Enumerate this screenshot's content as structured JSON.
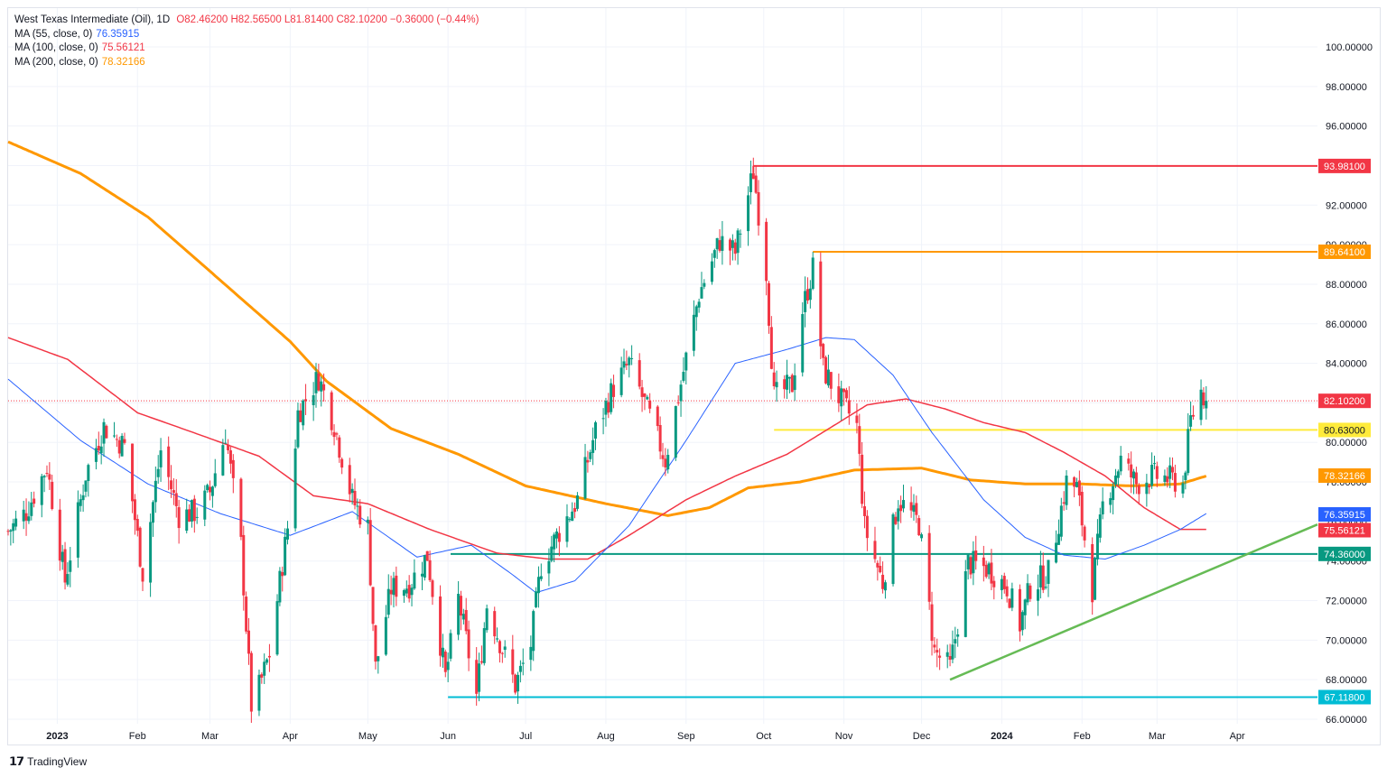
{
  "header": {
    "symbol": "West Texas Intermediate (Oil), 1D",
    "ohlc": "O82.46200 H82.56500 L81.81400 C82.10200 −0.36000 (−0.44%)",
    "ma55_label": "MA (55, close, 0)",
    "ma55_value": "76.35915",
    "ma100_label": "MA (100, close, 0)",
    "ma100_value": "75.56121",
    "ma200_label": "MA (200, close, 0)",
    "ma200_value": "78.32166"
  },
  "footer": {
    "brand": "TradingView"
  },
  "colors": {
    "up": "#089981",
    "down": "#f23645",
    "ma55": "#2962ff",
    "ma100": "#f23645",
    "ma200": "#ff9800"
  },
  "chart_data": {
    "type": "candlestick",
    "title": "West Texas Intermediate (Oil), 1D",
    "ylim": [
      65.7,
      101.6
    ],
    "y_ticks": [
      "100.00000",
      "98.00000",
      "96.00000",
      "94.00000",
      "92.00000",
      "90.00000",
      "88.00000",
      "86.00000",
      "84.00000",
      "82.00000",
      "80.00000",
      "78.00000",
      "76.00000",
      "74.00000",
      "72.00000",
      "70.00000",
      "68.00000",
      "66.00000"
    ],
    "x_ticks": [
      {
        "label": "2023",
        "d": "2023-01-01",
        "bold": true
      },
      {
        "label": "Feb",
        "d": "2023-02-01"
      },
      {
        "label": "Mar",
        "d": "2023-03-01"
      },
      {
        "label": "Apr",
        "d": "2023-04-01"
      },
      {
        "label": "May",
        "d": "2023-05-01"
      },
      {
        "label": "Jun",
        "d": "2023-06-01"
      },
      {
        "label": "Jul",
        "d": "2023-07-01"
      },
      {
        "label": "Aug",
        "d": "2023-08-01"
      },
      {
        "label": "Sep",
        "d": "2023-09-01"
      },
      {
        "label": "Oct",
        "d": "2023-10-01"
      },
      {
        "label": "Nov",
        "d": "2023-11-01"
      },
      {
        "label": "Dec",
        "d": "2023-12-01"
      },
      {
        "label": "2024",
        "d": "2024-01-01",
        "bold": true
      },
      {
        "label": "Feb",
        "d": "2024-02-01"
      },
      {
        "label": "Mar",
        "d": "2024-03-01"
      },
      {
        "label": "Apr",
        "d": "2024-04-01"
      }
    ],
    "x_range": [
      "2022-12-13",
      "2024-05-02"
    ],
    "last_price": 82.102,
    "price_anchors": [
      [
        "2022-12-13",
        75.5
      ],
      [
        "2022-12-20",
        76.5
      ],
      [
        "2022-12-28",
        78.8
      ],
      [
        "2023-01-04",
        73.0
      ],
      [
        "2023-01-12",
        78.4
      ],
      [
        "2023-01-19",
        80.8
      ],
      [
        "2023-01-27",
        79.8
      ],
      [
        "2023-02-03",
        73.4
      ],
      [
        "2023-02-10",
        79.6
      ],
      [
        "2023-02-17",
        76.3
      ],
      [
        "2023-02-24",
        76.5
      ],
      [
        "2023-03-01",
        77.5
      ],
      [
        "2023-03-07",
        80.5
      ],
      [
        "2023-03-13",
        74.8
      ],
      [
        "2023-03-17",
        66.7
      ],
      [
        "2023-03-20",
        67.6
      ],
      [
        "2023-03-24",
        69.3
      ],
      [
        "2023-03-31",
        75.7
      ],
      [
        "2023-04-04",
        81.5
      ],
      [
        "2023-04-12",
        83.3
      ],
      [
        "2023-04-18",
        80.9
      ],
      [
        "2023-04-25",
        77.1
      ],
      [
        "2023-05-01",
        75.7
      ],
      [
        "2023-05-04",
        68.6
      ],
      [
        "2023-05-10",
        72.6
      ],
      [
        "2023-05-17",
        72.8
      ],
      [
        "2023-05-24",
        74.3
      ],
      [
        "2023-05-31",
        68.1
      ],
      [
        "2023-06-05",
        72.1
      ],
      [
        "2023-06-12",
        67.2
      ],
      [
        "2023-06-16",
        71.8
      ],
      [
        "2023-06-23",
        69.2
      ],
      [
        "2023-06-27",
        67.7
      ],
      [
        "2023-07-03",
        69.8
      ],
      [
        "2023-07-07",
        73.8
      ],
      [
        "2023-07-14",
        75.5
      ],
      [
        "2023-07-21",
        77.1
      ],
      [
        "2023-07-28",
        80.6
      ],
      [
        "2023-08-04",
        82.8
      ],
      [
        "2023-08-10",
        84.0
      ],
      [
        "2023-08-18",
        81.3
      ],
      [
        "2023-08-24",
        79.1
      ],
      [
        "2023-08-31",
        83.6
      ],
      [
        "2023-09-06",
        87.5
      ],
      [
        "2023-09-14",
        90.2
      ],
      [
        "2023-09-20",
        89.6
      ],
      [
        "2023-09-27",
        93.7
      ],
      [
        "2023-10-02",
        88.6
      ],
      [
        "2023-10-05",
        82.3
      ],
      [
        "2023-10-12",
        82.9
      ],
      [
        "2023-10-16",
        86.7
      ],
      [
        "2023-10-20",
        88.8
      ],
      [
        "2023-10-24",
        83.7
      ],
      [
        "2023-10-30",
        82.3
      ],
      [
        "2023-11-06",
        80.8
      ],
      [
        "2023-11-09",
        75.7
      ],
      [
        "2023-11-16",
        72.9
      ],
      [
        "2023-11-22",
        77.1
      ],
      [
        "2023-11-30",
        75.9
      ],
      [
        "2023-12-06",
        69.4
      ],
      [
        "2023-12-12",
        68.6
      ],
      [
        "2023-12-19",
        73.9
      ],
      [
        "2023-12-27",
        73.6
      ],
      [
        "2024-01-03",
        72.7
      ],
      [
        "2024-01-08",
        70.8
      ],
      [
        "2024-01-12",
        72.7
      ],
      [
        "2024-01-19",
        73.4
      ],
      [
        "2024-01-26",
        78.0
      ],
      [
        "2024-01-30",
        77.7
      ],
      [
        "2024-02-05",
        72.6
      ],
      [
        "2024-02-09",
        76.8
      ],
      [
        "2024-02-16",
        79.1
      ],
      [
        "2024-02-22",
        77.9
      ],
      [
        "2024-02-28",
        78.3
      ],
      [
        "2024-03-05",
        78.2
      ],
      [
        "2024-03-11",
        77.9
      ],
      [
        "2024-03-14",
        81.1
      ],
      [
        "2024-03-18",
        82.6
      ],
      [
        "2024-03-20",
        82.1
      ]
    ],
    "ma55_anchors": [
      [
        "2022-12-13",
        83.2
      ],
      [
        "2023-01-10",
        80.1
      ],
      [
        "2023-02-05",
        77.9
      ],
      [
        "2023-03-05",
        76.4
      ],
      [
        "2023-04-01",
        75.3
      ],
      [
        "2023-04-25",
        76.5
      ],
      [
        "2023-05-20",
        74.2
      ],
      [
        "2023-06-10",
        74.8
      ],
      [
        "2023-06-25",
        73.4
      ],
      [
        "2023-07-05",
        72.4
      ],
      [
        "2023-07-20",
        73.0
      ],
      [
        "2023-08-10",
        75.8
      ],
      [
        "2023-09-01",
        80.1
      ],
      [
        "2023-09-20",
        84.0
      ],
      [
        "2023-10-10",
        84.7
      ],
      [
        "2023-10-25",
        85.3
      ],
      [
        "2023-11-05",
        85.2
      ],
      [
        "2023-11-20",
        83.4
      ],
      [
        "2023-12-05",
        80.5
      ],
      [
        "2023-12-25",
        77.1
      ],
      [
        "2024-01-10",
        75.2
      ],
      [
        "2024-01-25",
        74.3
      ],
      [
        "2024-02-10",
        74.1
      ],
      [
        "2024-02-25",
        74.8
      ],
      [
        "2024-03-10",
        75.6
      ],
      [
        "2024-03-20",
        76.4
      ]
    ],
    "ma100_anchors": [
      [
        "2022-12-13",
        85.3
      ],
      [
        "2023-01-05",
        84.2
      ],
      [
        "2023-02-01",
        81.5
      ],
      [
        "2023-03-01",
        80.2
      ],
      [
        "2023-03-20",
        79.3
      ],
      [
        "2023-04-10",
        77.3
      ],
      [
        "2023-05-01",
        76.9
      ],
      [
        "2023-05-25",
        75.6
      ],
      [
        "2023-06-20",
        74.4
      ],
      [
        "2023-07-10",
        74.1
      ],
      [
        "2023-07-25",
        74.1
      ],
      [
        "2023-08-10",
        75.3
      ],
      [
        "2023-09-01",
        77.1
      ],
      [
        "2023-09-20",
        78.3
      ],
      [
        "2023-10-10",
        79.4
      ],
      [
        "2023-10-25",
        80.6
      ],
      [
        "2023-11-10",
        81.9
      ],
      [
        "2023-11-25",
        82.2
      ],
      [
        "2023-12-10",
        81.7
      ],
      [
        "2023-12-25",
        81.0
      ],
      [
        "2024-01-10",
        80.5
      ],
      [
        "2024-01-25",
        79.5
      ],
      [
        "2024-02-10",
        78.3
      ],
      [
        "2024-02-25",
        76.7
      ],
      [
        "2024-03-10",
        75.6
      ],
      [
        "2024-03-20",
        75.6
      ]
    ],
    "ma200_anchors": [
      [
        "2022-12-13",
        95.2
      ],
      [
        "2023-01-10",
        93.6
      ],
      [
        "2023-02-05",
        91.4
      ],
      [
        "2023-03-05",
        88.2
      ],
      [
        "2023-04-01",
        85.1
      ],
      [
        "2023-04-15",
        83.1
      ],
      [
        "2023-05-10",
        80.7
      ],
      [
        "2023-06-05",
        79.4
      ],
      [
        "2023-07-01",
        77.8
      ],
      [
        "2023-08-01",
        76.9
      ],
      [
        "2023-08-25",
        76.3
      ],
      [
        "2023-09-10",
        76.7
      ],
      [
        "2023-09-25",
        77.7
      ],
      [
        "2023-10-15",
        78.0
      ],
      [
        "2023-11-05",
        78.6
      ],
      [
        "2023-12-01",
        78.7
      ],
      [
        "2023-12-20",
        78.1
      ],
      [
        "2024-01-10",
        77.9
      ],
      [
        "2024-02-01",
        77.9
      ],
      [
        "2024-02-20",
        77.8
      ],
      [
        "2024-03-10",
        77.9
      ],
      [
        "2024-03-20",
        78.3
      ]
    ],
    "levels": [
      {
        "value": 93.981,
        "label": "93.98100",
        "color": "#f23645",
        "from": "2023-09-27"
      },
      {
        "value": 89.641,
        "label": "89.64100",
        "color": "#ff9800",
        "from": "2023-10-20"
      },
      {
        "value": 80.63,
        "label": "80.63000",
        "color": "#ffeb3b",
        "from": "2023-10-05"
      },
      {
        "value": 74.36,
        "label": "74.36000",
        "color": "#089981",
        "from": "2023-06-02"
      },
      {
        "value": 67.118,
        "label": "67.11800",
        "color": "#00bcd4",
        "from": "2023-06-01"
      }
    ],
    "axis_labels": [
      {
        "value": 82.102,
        "label": "82.10200",
        "color": "#f23645"
      },
      {
        "value": 78.32166,
        "label": "78.32166",
        "color": "#ff9800"
      },
      {
        "value": 76.35915,
        "label": "76.35915",
        "color": "#2962ff"
      },
      {
        "value": 75.56121,
        "label": "75.56121",
        "color": "#f23645"
      }
    ],
    "trendline": {
      "from": [
        "2023-12-12",
        68.0
      ],
      "to": [
        "2024-05-02",
        75.85
      ],
      "color": "#66bb55"
    }
  }
}
